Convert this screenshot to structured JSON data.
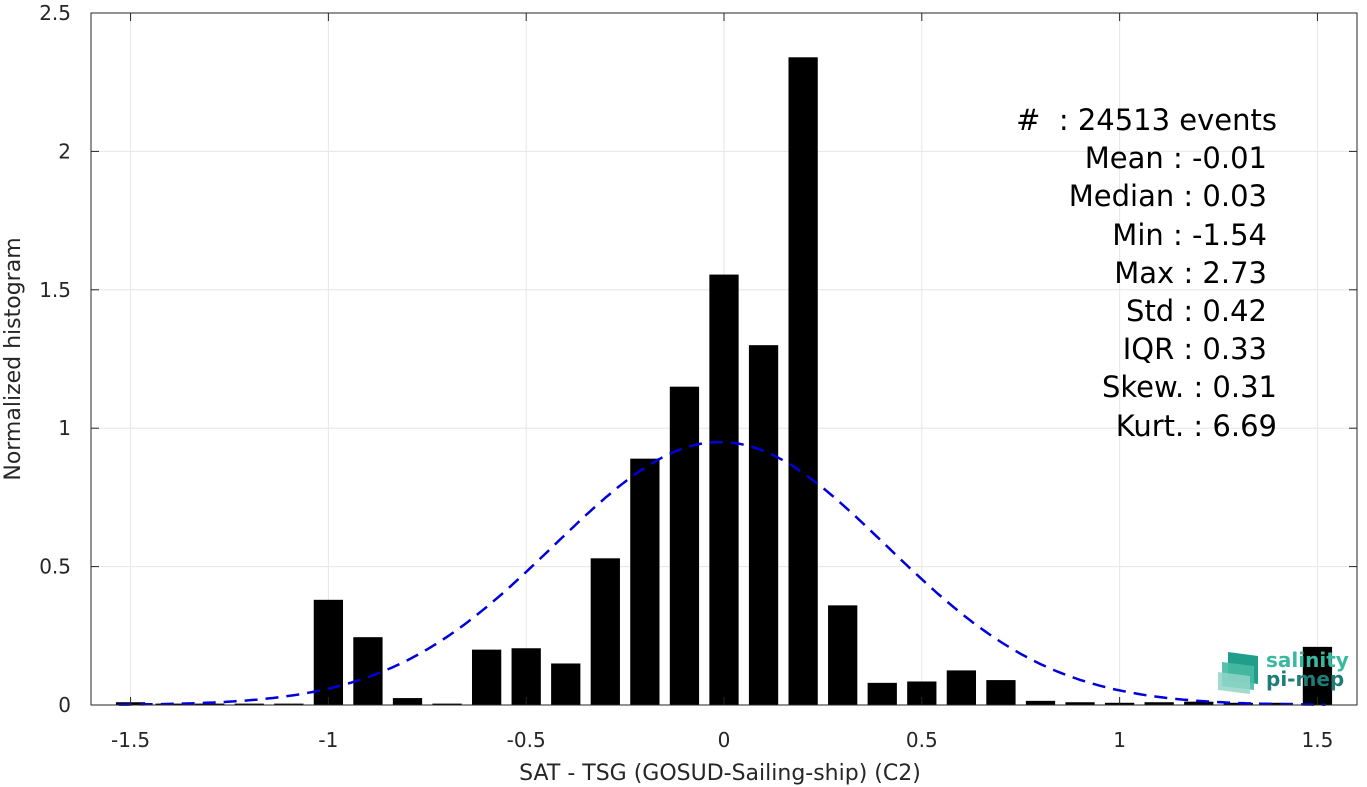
{
  "chart_data": {
    "type": "bar",
    "xlabel": "SAT - TSG (GOSUD-Sailing-ship) (C2)",
    "ylabel": "Normalized histogram",
    "xlim": [
      -1.6,
      1.6
    ],
    "ylim": [
      0,
      2.5
    ],
    "grid": true,
    "x_ticks": [
      -1.5,
      -1,
      -0.5,
      0,
      0.5,
      1,
      1.5
    ],
    "x_tick_labels": [
      "-1.5",
      "-1",
      "-0.5",
      "0",
      "0.5",
      "1",
      "1.5"
    ],
    "y_ticks": [
      0,
      0.5,
      1,
      1.5,
      2,
      2.5
    ],
    "y_tick_labels": [
      "0",
      "0.5",
      "1",
      "1.5",
      "2",
      "2.5"
    ],
    "bar_color": "#000000",
    "bin_width": 0.1,
    "bin_centers": [
      -1.5,
      -1.4,
      -1.3,
      -1.2,
      -1.1,
      -1.0,
      -0.9,
      -0.8,
      -0.7,
      -0.6,
      -0.5,
      -0.4,
      -0.3,
      -0.2,
      -0.1,
      0.0,
      0.1,
      0.2,
      0.3,
      0.4,
      0.5,
      0.6,
      0.7,
      0.8,
      0.9,
      1.0,
      1.1,
      1.2,
      1.3,
      1.4,
      1.5
    ],
    "values": [
      0.01,
      0.005,
      0.005,
      0.005,
      0.005,
      0.38,
      0.245,
      0.025,
      0.005,
      0.2,
      0.205,
      0.15,
      0.53,
      0.89,
      1.15,
      1.555,
      1.3,
      2.34,
      0.36,
      0.08,
      0.085,
      0.125,
      0.09,
      0.015,
      0.01,
      0.008,
      0.01,
      0.012,
      0.008,
      0.008,
      0.21
    ],
    "fit_curve": {
      "type": "normal",
      "mean": -0.01,
      "std": 0.42,
      "color": "#0000dd",
      "style": "dashed"
    }
  },
  "stats": {
    "count_line": "#  : 24513 events",
    "lines": [
      "Mean : -0.01",
      "Median : 0.03",
      "Min : -1.54",
      "Max : 2.73",
      "Std : 0.42",
      "IQR : 0.33",
      "Skew. : 0.31",
      "Kurt. : 6.69"
    ]
  },
  "logo": {
    "line1": "salinity",
    "line2": "pi-mep",
    "color1": "#3cb8a0",
    "color2": "#1f7c78"
  }
}
